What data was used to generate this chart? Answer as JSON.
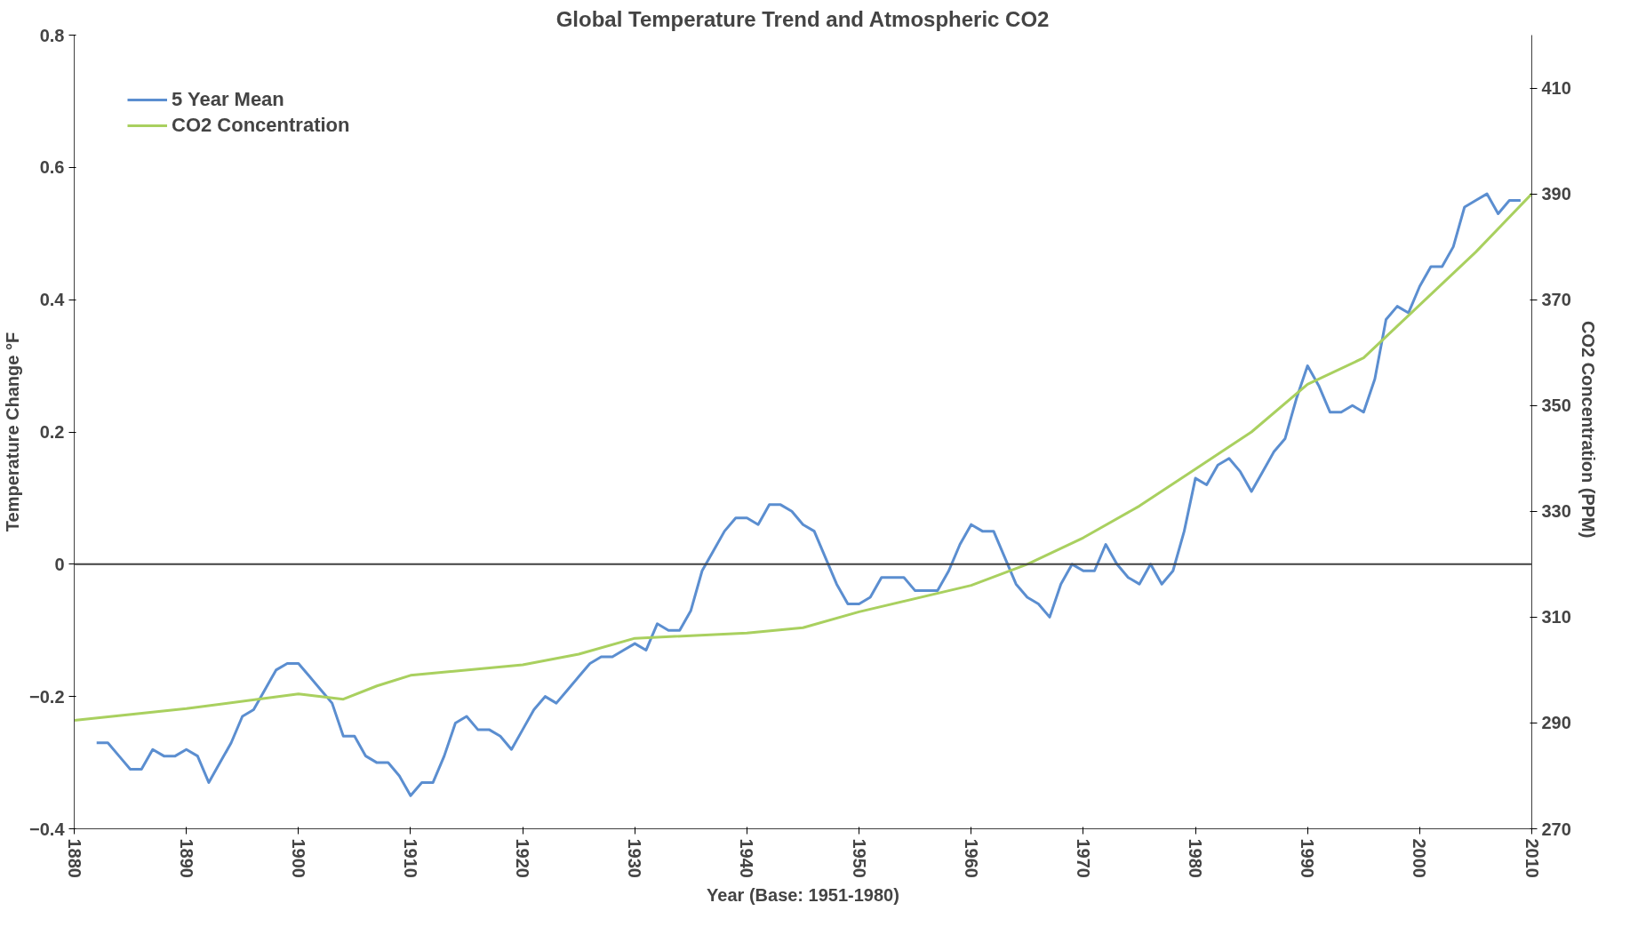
{
  "chart_data": {
    "type": "line",
    "title": "Global Temperature Trend and Atmospheric CO2",
    "xlabel": "Year (Base: 1951-1980)",
    "ylabel": "Temperature Change °F",
    "y2label": "CO2 Concentration  (PPM)",
    "xlim": [
      1880,
      2010
    ],
    "xticks": [
      1880,
      1890,
      1900,
      1910,
      1920,
      1930,
      1940,
      1950,
      1960,
      1970,
      1980,
      1990,
      2000,
      2010
    ],
    "ylim": [
      -0.4,
      0.8
    ],
    "yticks": [
      -0.4,
      -0.2,
      0,
      0.2,
      0.4,
      0.6,
      0.8
    ],
    "y2lim": [
      270,
      420
    ],
    "y2ticks": [
      270,
      290,
      310,
      330,
      350,
      370,
      390,
      410
    ],
    "legend": "top left",
    "grid": false,
    "ref_lines": [
      {
        "axis": "y",
        "value": 0,
        "color": "#404040"
      }
    ],
    "series": [
      {
        "name": "5 Year Mean",
        "color": "#5b8ed0",
        "x": [
          1882,
          1883,
          1884,
          1885,
          1886,
          1887,
          1888,
          1889,
          1890,
          1891,
          1892,
          1893,
          1894,
          1895,
          1896,
          1897,
          1898,
          1899,
          1900,
          1901,
          1902,
          1903,
          1904,
          1905,
          1906,
          1907,
          1908,
          1909,
          1910,
          1911,
          1912,
          1913,
          1914,
          1915,
          1916,
          1917,
          1918,
          1919,
          1920,
          1921,
          1922,
          1923,
          1924,
          1925,
          1926,
          1927,
          1928,
          1929,
          1930,
          1931,
          1932,
          1933,
          1934,
          1935,
          1936,
          1937,
          1938,
          1939,
          1940,
          1941,
          1942,
          1943,
          1944,
          1945,
          1946,
          1947,
          1948,
          1949,
          1950,
          1951,
          1952,
          1953,
          1954,
          1955,
          1956,
          1957,
          1958,
          1959,
          1960,
          1961,
          1962,
          1963,
          1964,
          1965,
          1966,
          1967,
          1968,
          1969,
          1970,
          1971,
          1972,
          1973,
          1974,
          1975,
          1976,
          1977,
          1978,
          1979,
          1980,
          1981,
          1982,
          1983,
          1984,
          1985,
          1986,
          1987,
          1988,
          1989,
          1990,
          1991,
          1992,
          1993,
          1994,
          1995,
          1996,
          1997,
          1998,
          1999,
          2000,
          2001,
          2002,
          2003,
          2004,
          2005,
          2006,
          2007,
          2008,
          2009
        ],
        "values": [
          -0.27,
          -0.27,
          -0.29,
          -0.31,
          -0.31,
          -0.28,
          -0.29,
          -0.29,
          -0.28,
          -0.29,
          -0.33,
          -0.3,
          -0.27,
          -0.23,
          -0.22,
          -0.19,
          -0.16,
          -0.15,
          -0.15,
          -0.17,
          -0.19,
          -0.21,
          -0.26,
          -0.26,
          -0.29,
          -0.3,
          -0.3,
          -0.32,
          -0.35,
          -0.33,
          -0.33,
          -0.29,
          -0.24,
          -0.23,
          -0.25,
          -0.25,
          -0.26,
          -0.28,
          -0.25,
          -0.22,
          -0.2,
          -0.21,
          -0.19,
          -0.17,
          -0.15,
          -0.14,
          -0.14,
          -0.13,
          -0.12,
          -0.13,
          -0.09,
          -0.1,
          -0.1,
          -0.07,
          -0.01,
          0.02,
          0.05,
          0.07,
          0.07,
          0.06,
          0.09,
          0.09,
          0.08,
          0.06,
          0.05,
          0.01,
          -0.03,
          -0.06,
          -0.06,
          -0.05,
          -0.02,
          -0.02,
          -0.02,
          -0.04,
          -0.04,
          -0.04,
          -0.01,
          0.03,
          0.06,
          0.05,
          0.05,
          0.01,
          -0.03,
          -0.05,
          -0.06,
          -0.08,
          -0.03,
          0.0,
          -0.01,
          -0.01,
          0.03,
          0.0,
          -0.02,
          -0.03,
          0.0,
          -0.03,
          -0.01,
          0.05,
          0.13,
          0.12,
          0.15,
          0.16,
          0.14,
          0.11,
          0.14,
          0.17,
          0.19,
          0.25,
          0.3,
          0.27,
          0.23,
          0.23,
          0.24,
          0.23,
          0.28,
          0.37,
          0.39,
          0.38,
          0.42,
          0.45,
          0.45,
          0.48,
          0.54,
          0.55,
          0.56,
          0.53,
          0.55,
          0.55
        ]
      },
      {
        "name": "CO2 Concentration",
        "color": "#a9d05f",
        "axis": "y2",
        "x": [
          1880,
          1890,
          1900,
          1904,
          1907,
          1910,
          1920,
          1925,
          1930,
          1940,
          1945,
          1950,
          1960,
          1965,
          1970,
          1975,
          1980,
          1985,
          1990,
          1995,
          2000,
          2005,
          2010
        ],
        "values": [
          290.5,
          292.7,
          295.5,
          294.5,
          297,
          299,
          301,
          303,
          306,
          307,
          308,
          311,
          316,
          320,
          325,
          331,
          338,
          345,
          354,
          359,
          369,
          379,
          390
        ]
      }
    ]
  }
}
